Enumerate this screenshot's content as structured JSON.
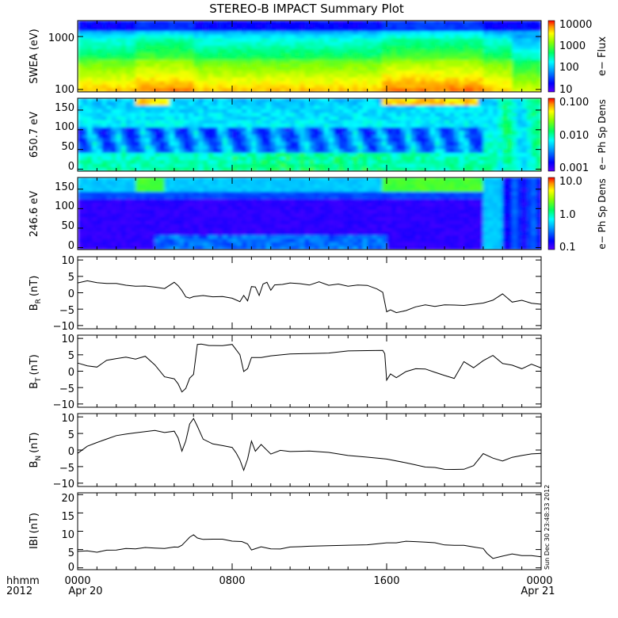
{
  "title": "STEREO-B IMPACT Summary Plot",
  "stamp": "Sun Dec 30 23:48:33 2012",
  "x_axis": {
    "row1": {
      "left": "hhmm",
      "ticks": [
        "0000",
        "0800",
        "1600",
        "0000"
      ]
    },
    "row2": {
      "left": "2012",
      "first": "Apr 20",
      "last": "Apr 21"
    },
    "range_hours": [
      0,
      24
    ],
    "tick_hours": [
      0,
      8,
      16,
      24
    ]
  },
  "colors": {
    "line": "#000000",
    "background": "#ffffff"
  },
  "chart_data": [
    {
      "type": "heatmap",
      "ylabel": "SWEA (eV)",
      "yscale": "log",
      "ylim": [
        90,
        2000
      ],
      "yticks": [
        "100",
        "1000"
      ],
      "ytick_values": [
        100,
        1000
      ],
      "colorbar": {
        "label": "e− Flux",
        "scale": "log",
        "range": [
          10,
          10000
        ],
        "ticks": [
          "10000",
          "1000",
          "100",
          "10"
        ],
        "tick_values": [
          10000,
          1000,
          100,
          10
        ]
      }
    },
    {
      "type": "heatmap",
      "ylabel": "650.7 eV",
      "ylim": [
        -5,
        180
      ],
      "yticks": [
        "0",
        "50",
        "100",
        "150"
      ],
      "ytick_values": [
        0,
        50,
        100,
        150
      ],
      "colorbar": {
        "label": "e− Ph Sp Dens",
        "scale": "log",
        "range": [
          0.001,
          0.1
        ],
        "ticks": [
          "0.100",
          "0.010",
          "0.001"
        ],
        "tick_values": [
          0.1,
          0.01,
          0.001
        ]
      }
    },
    {
      "type": "heatmap",
      "ylabel": "246.6 eV",
      "ylim": [
        -5,
        180
      ],
      "yticks": [
        "0",
        "50",
        "100",
        "150"
      ],
      "ytick_values": [
        0,
        50,
        100,
        150
      ],
      "colorbar": {
        "label": "e− Ph Sp Dens",
        "scale": "log",
        "range": [
          0.1,
          10
        ],
        "ticks": [
          "10.0",
          "1.0",
          "0.1"
        ],
        "tick_values": [
          10,
          1,
          0.1
        ]
      }
    },
    {
      "type": "line",
      "ylabel": "B",
      "ylabel_sub": "R",
      "ylabel_unit": "(nT)",
      "ylim": [
        -11,
        11
      ],
      "yticks": [
        "10",
        "5",
        "0",
        "−5",
        "−10"
      ],
      "ytick_values": [
        10,
        5,
        0,
        -5,
        -10
      ],
      "x": [
        0,
        0.5,
        1,
        1.5,
        2,
        2.5,
        3,
        3.5,
        4,
        4.5,
        5,
        5.2,
        5.4,
        5.6,
        5.8,
        6,
        6.5,
        7,
        7.5,
        8,
        8.4,
        8.6,
        8.8,
        9,
        9.2,
        9.4,
        9.6,
        9.8,
        10,
        10.2,
        10.6,
        11,
        11.5,
        12,
        12.5,
        13,
        13.5,
        14,
        14.5,
        15,
        15.5,
        15.8,
        16,
        16.2,
        16.5,
        17,
        17.5,
        18,
        18.5,
        19,
        19.5,
        20,
        20.5,
        21,
        21.5,
        22,
        22.5,
        23,
        23.5,
        24
      ],
      "y": [
        3,
        3.5,
        2.8,
        2.5,
        2.5,
        2,
        1.8,
        2,
        1.8,
        1.5,
        3.5,
        2.5,
        1,
        -1,
        -1.5,
        -1.2,
        -1,
        -1.5,
        -1.5,
        -2,
        -3,
        -1,
        -2.5,
        2,
        2,
        -0.5,
        3,
        3.5,
        1,
        2.5,
        2.5,
        2.8,
        2.5,
        2,
        3,
        2,
        2.5,
        2,
        2.5,
        2.5,
        1.5,
        0.5,
        -5.5,
        -5,
        -6,
        -5.5,
        -4.5,
        -4,
        -4.5,
        -4,
        -4,
        -4,
        -3.5,
        -3,
        -2,
        0,
        -2.5,
        -2,
        -3,
        -3.5
      ]
    },
    {
      "type": "line",
      "ylabel": "B",
      "ylabel_sub": "T",
      "ylabel_unit": "(nT)",
      "ylim": [
        -11,
        11
      ],
      "yticks": [
        "10",
        "5",
        "0",
        "−5",
        "−10"
      ],
      "ytick_values": [
        10,
        5,
        0,
        -5,
        -10
      ],
      "x": [
        0,
        0.5,
        1,
        1.5,
        2,
        2.5,
        3,
        3.5,
        4,
        4.5,
        5,
        5.2,
        5.4,
        5.6,
        5.8,
        6,
        6.2,
        6.4,
        6.8,
        7,
        7.5,
        8,
        8.4,
        8.6,
        8.8,
        9,
        9.5,
        10,
        11,
        12,
        13,
        14,
        15,
        15.8,
        15.9,
        16,
        16.2,
        16.5,
        17,
        17.5,
        18,
        18.5,
        19,
        19.5,
        20,
        20.5,
        21,
        21.5,
        22,
        22.5,
        23,
        23.5,
        24
      ],
      "y": [
        2.5,
        1.5,
        1,
        3,
        3.5,
        4,
        3.5,
        4.5,
        2,
        -1.5,
        -2,
        -3.5,
        -6,
        -5,
        -2,
        -1,
        8,
        8,
        7.5,
        7.5,
        7.5,
        8,
        5,
        0,
        1,
        4.5,
        4.5,
        5,
        5.5,
        5.5,
        5.5,
        6,
        6,
        6,
        5,
        -3,
        -1,
        -2,
        0,
        1,
        1,
        0,
        -1,
        -2,
        3,
        1,
        3,
        4.5,
        2,
        1.5,
        0.5,
        2,
        1
      ]
    },
    {
      "type": "line",
      "ylabel": "B",
      "ylabel_sub": "N",
      "ylabel_unit": "(nT)",
      "ylim": [
        -11,
        11
      ],
      "yticks": [
        "10",
        "5",
        "0",
        "−5",
        "−10"
      ],
      "ytick_values": [
        10,
        5,
        0,
        -5,
        -10
      ],
      "x": [
        0,
        0.5,
        1,
        1.5,
        2,
        2.5,
        3,
        3.5,
        4,
        4.5,
        5,
        5.2,
        5.4,
        5.6,
        5.8,
        6,
        6.2,
        6.5,
        7,
        7.5,
        8,
        8.2,
        8.4,
        8.6,
        8.8,
        9,
        9.2,
        9.5,
        10,
        10.5,
        11,
        12,
        13,
        14,
        15,
        16,
        17,
        17.5,
        18,
        18.5,
        19,
        19.5,
        20,
        20.5,
        21,
        21.5,
        22,
        22.5,
        23,
        23.5,
        24
      ],
      "y": [
        -1,
        1,
        2,
        3,
        4,
        4.5,
        5,
        5.5,
        6,
        5.5,
        6,
        4,
        0,
        3,
        8,
        9.5,
        7,
        3,
        1.5,
        1,
        0.5,
        -1,
        -3,
        -6,
        -2.5,
        3,
        0,
        2,
        -1,
        0,
        -0.5,
        -0.5,
        -1,
        -2,
        -2.5,
        -3,
        -4,
        -4.5,
        -5,
        -5,
        -5.5,
        -5.5,
        -5.5,
        -4.5,
        -1,
        -2.5,
        -3.5,
        -2.5,
        -2,
        -1.5,
        -1
      ]
    },
    {
      "type": "line",
      "ylabel": "IBI",
      "ylabel_unit": "(nT)",
      "ylim": [
        -0.5,
        20.5
      ],
      "yticks": [
        "20",
        "15",
        "10",
        "5",
        "0"
      ],
      "ytick_values": [
        20,
        15,
        10,
        5,
        0
      ],
      "x": [
        0,
        0.5,
        1,
        1.5,
        2,
        2.5,
        3,
        3.5,
        4,
        4.5,
        5,
        5.2,
        5.4,
        5.6,
        5.8,
        6,
        6.2,
        6.5,
        7,
        7.5,
        8,
        8.5,
        8.8,
        9,
        9.5,
        10,
        10.5,
        11,
        11.5,
        12,
        13,
        14,
        15,
        16,
        16.5,
        17,
        17.5,
        18,
        18.5,
        19,
        19.5,
        20,
        20.5,
        21,
        21.2,
        21.5,
        22,
        22.5,
        23,
        23.5,
        24
      ],
      "y": [
        4.5,
        4.5,
        4,
        4.5,
        4.5,
        5,
        5,
        5.5,
        5.5,
        5.5,
        6,
        6,
        6.5,
        7.5,
        8.5,
        9,
        8,
        7.5,
        7.5,
        7.5,
        7,
        7,
        6.5,
        5,
        6,
        5.5,
        5.5,
        6,
        6,
        6,
        6,
        6,
        6,
        6.5,
        6.5,
        7,
        7,
        7,
        7,
        6.5,
        6.5,
        6.5,
        6,
        5.5,
        4,
        2.5,
        3,
        3.5,
        3,
        3,
        3
      ]
    }
  ]
}
